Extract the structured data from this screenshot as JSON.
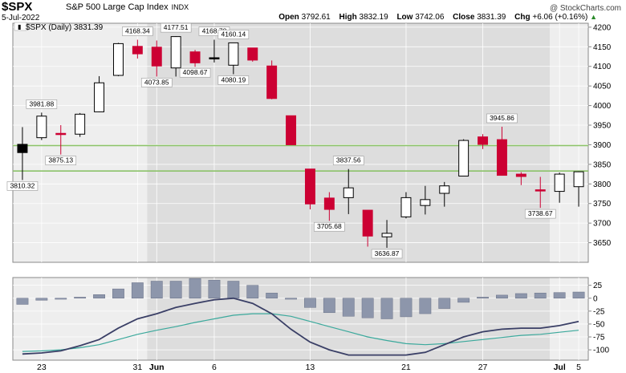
{
  "header": {
    "symbol": "$SPX",
    "name": "S&P 500 Large Cap Index",
    "exchange": "INDX",
    "date": "5-Jul-2022",
    "copyright": "@ StockCharts.com",
    "open_label": "Open",
    "open": "3792.61",
    "high_label": "High",
    "high": "3832.19",
    "low_label": "Low",
    "low": "3742.06",
    "close_label": "Close",
    "close": "3831.39",
    "chg_label": "Chg",
    "chg": "+6.06 (+0.16%)",
    "up_triangle": "▲"
  },
  "colors": {
    "up_fill": "#ffffff",
    "down_fill": "#cc0033",
    "flat_fill": "#000000",
    "hist_fill": "#8d96ab",
    "macd_line": "#3a3f66",
    "signal_line": "#3ba99c",
    "support_line": "#8cc26a",
    "bg_light": "#eeeeee",
    "bg_dark": "#dddddd"
  },
  "chart_data": [
    {
      "type": "candlestick",
      "title": "$SPX (Daily) 3831.39",
      "ylim": [
        3600,
        4210
      ],
      "yticks": [
        3650,
        3700,
        3750,
        3800,
        3850,
        3900,
        3950,
        4000,
        4050,
        4100,
        4150,
        4200
      ],
      "ytick_labels": [
        "3650",
        "3700",
        "3750",
        "3800",
        "3850",
        "3900",
        "3950",
        "4000",
        "4050",
        "4100",
        "4150",
        "4200"
      ],
      "xtick_labels": [
        {
          "index": 1,
          "label": "23"
        },
        {
          "index": 6,
          "label": "31"
        },
        {
          "index": 7,
          "label": "Jun"
        },
        {
          "index": 10,
          "label": "6"
        },
        {
          "index": 15,
          "label": "13"
        },
        {
          "index": 20,
          "label": "21"
        },
        {
          "index": 24,
          "label": "27"
        },
        {
          "index": 28,
          "label": "Jul"
        },
        {
          "index": 29,
          "label": "5"
        }
      ],
      "candles": [
        {
          "o": 3880,
          "h": 3945,
          "l": 3810,
          "c": 3901,
          "color": "flat"
        },
        {
          "o": 3918,
          "h": 3982,
          "l": 3912,
          "c": 3973,
          "color": "up"
        },
        {
          "o": 3929,
          "h": 3950,
          "l": 3875,
          "c": 3929,
          "color": "down"
        },
        {
          "o": 3927,
          "h": 3981,
          "l": 3920,
          "c": 3978,
          "color": "up"
        },
        {
          "o": 3984,
          "h": 4075,
          "l": 3983,
          "c": 4058,
          "color": "up"
        },
        {
          "o": 4077,
          "h": 4160,
          "l": 4075,
          "c": 4158,
          "color": "up"
        },
        {
          "o": 4151,
          "h": 4168,
          "l": 4120,
          "c": 4132,
          "color": "down"
        },
        {
          "o": 4149,
          "h": 4166,
          "l": 4074,
          "c": 4101,
          "color": "down"
        },
        {
          "o": 4096,
          "h": 4177,
          "l": 4074,
          "c": 4176,
          "color": "up"
        },
        {
          "o": 4137,
          "h": 4142,
          "l": 4099,
          "c": 4109,
          "color": "down"
        },
        {
          "o": 4122,
          "h": 4168,
          "l": 4110,
          "c": 4121,
          "color": "flat"
        },
        {
          "o": 4103,
          "h": 4160,
          "l": 4080,
          "c": 4160,
          "color": "up"
        },
        {
          "o": 4147,
          "h": 4147,
          "l": 4112,
          "c": 4116,
          "color": "down"
        },
        {
          "o": 4101,
          "h": 4115,
          "l": 4016,
          "c": 4018,
          "color": "down"
        },
        {
          "o": 3974,
          "h": 3974,
          "l": 3900,
          "c": 3900,
          "color": "down"
        },
        {
          "o": 3838,
          "h": 3838,
          "l": 3735,
          "c": 3749,
          "color": "down"
        },
        {
          "o": 3764,
          "h": 3779,
          "l": 3706,
          "c": 3735,
          "color": "down"
        },
        {
          "o": 3765,
          "h": 3838,
          "l": 3723,
          "c": 3790,
          "color": "up"
        },
        {
          "o": 3733,
          "h": 3733,
          "l": 3640,
          "c": 3667,
          "color": "down"
        },
        {
          "o": 3665,
          "h": 3708,
          "l": 3637,
          "c": 3674,
          "color": "up"
        },
        {
          "o": 3716,
          "h": 3779,
          "l": 3712,
          "c": 3765,
          "color": "up"
        },
        {
          "o": 3745,
          "h": 3795,
          "l": 3722,
          "c": 3760,
          "color": "up"
        },
        {
          "o": 3776,
          "h": 3805,
          "l": 3742,
          "c": 3795,
          "color": "up"
        },
        {
          "o": 3820,
          "h": 3914,
          "l": 3820,
          "c": 3911,
          "color": "up"
        },
        {
          "o": 3920,
          "h": 3927,
          "l": 3889,
          "c": 3901,
          "color": "down"
        },
        {
          "o": 3913,
          "h": 3946,
          "l": 3821,
          "c": 3822,
          "color": "down"
        },
        {
          "o": 3825,
          "h": 3830,
          "l": 3797,
          "c": 3819,
          "color": "down"
        },
        {
          "o": 3785,
          "h": 3818,
          "l": 3739,
          "c": 3785,
          "color": "down"
        },
        {
          "o": 3781,
          "h": 3829,
          "l": 3752,
          "c": 3825,
          "color": "up"
        },
        {
          "o": 3793,
          "h": 3832,
          "l": 3742,
          "c": 3831,
          "color": "up"
        }
      ],
      "support_lines": [
        3898,
        3833
      ],
      "annotations": [
        {
          "index": 0,
          "value": 3810,
          "label": "3810.32",
          "pos": "below"
        },
        {
          "index": 1,
          "value": 3982,
          "label": "3981.88",
          "pos": "above"
        },
        {
          "index": 2,
          "value": 3875,
          "label": "3875.13",
          "pos": "below"
        },
        {
          "index": 6,
          "value": 4168,
          "label": "4168.34",
          "pos": "above"
        },
        {
          "index": 7,
          "value": 4074,
          "label": "4073.85",
          "pos": "below"
        },
        {
          "index": 8,
          "value": 4177,
          "label": "4177.51",
          "pos": "above"
        },
        {
          "index": 9,
          "value": 4099,
          "label": "4098.67",
          "pos": "below"
        },
        {
          "index": 10,
          "value": 4168,
          "label": "4168.78",
          "pos": "above"
        },
        {
          "index": 11,
          "value": 4160,
          "label": "4160.14",
          "pos": "above"
        },
        {
          "index": 11,
          "value": 4080,
          "label": "4080.19",
          "pos": "below"
        },
        {
          "index": 16,
          "value": 3706,
          "label": "3705.68",
          "pos": "below"
        },
        {
          "index": 17,
          "value": 3838,
          "label": "3837.56",
          "pos": "above"
        },
        {
          "index": 19,
          "value": 3637,
          "label": "3636.87",
          "pos": "below"
        },
        {
          "index": 25,
          "value": 3946,
          "label": "3945.86",
          "pos": "above"
        },
        {
          "index": 27,
          "value": 3739,
          "label": "3738.67",
          "pos": "below"
        }
      ]
    },
    {
      "type": "macd",
      "ylim": [
        -120,
        40
      ],
      "yticks": [
        25,
        0,
        -25,
        -50,
        -75,
        -100
      ],
      "ytick_labels": [
        "25",
        "0",
        "-25",
        "-50",
        "-75",
        "-100"
      ],
      "histogram": [
        -12,
        -4,
        -2,
        2,
        7,
        18,
        30,
        33,
        33,
        38,
        35,
        33,
        25,
        10,
        -2,
        -18,
        -28,
        -35,
        -38,
        -40,
        -36,
        -30,
        -20,
        -8,
        2,
        6,
        9,
        10,
        11,
        12
      ],
      "macd": [
        -108,
        -106,
        -102,
        -92,
        -80,
        -58,
        -40,
        -30,
        -18,
        -10,
        -3,
        0,
        -10,
        -30,
        -60,
        -85,
        -100,
        -110,
        -110,
        -110,
        -110,
        -105,
        -90,
        -75,
        -65,
        -60,
        -58,
        -58,
        -53,
        -45
      ],
      "signal": [
        -103,
        -102,
        -100,
        -96,
        -90,
        -80,
        -70,
        -62,
        -55,
        -47,
        -40,
        -33,
        -30,
        -30,
        -35,
        -45,
        -55,
        -65,
        -75,
        -82,
        -88,
        -90,
        -88,
        -84,
        -80,
        -76,
        -72,
        -70,
        -66,
        -62
      ]
    }
  ]
}
